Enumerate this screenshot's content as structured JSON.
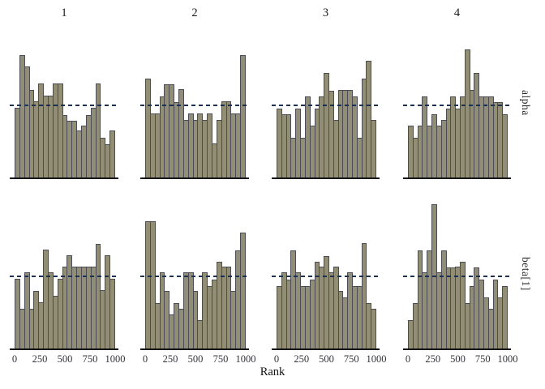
{
  "figure": {
    "col_titles": [
      "1",
      "2",
      "3",
      "4"
    ],
    "row_labels": [
      "alpha",
      "beta[1]"
    ],
    "xlabel": "Rank",
    "x_tick_labels": [
      "0",
      "250",
      "500",
      "750",
      "1000"
    ],
    "colors": {
      "background": "#ffffff",
      "bar_fill": "#928e76",
      "bar_border": "#4c4c56",
      "reference_line": "#1c3152",
      "axis_line": "#141414",
      "title_text": "#1a1a1a",
      "tick_text": "#33333d"
    }
  },
  "chart_data": {
    "type": "bar",
    "subtype": "faceted rank histograms (MCMC chain rank plot), 2 rows x 4 columns",
    "facet_grid": {
      "rows": [
        "alpha",
        "beta[1]"
      ],
      "cols": [
        "1",
        "2",
        "3",
        "4"
      ]
    },
    "title": "",
    "xlabel": "Rank",
    "ylabel": "",
    "x_range": [
      0,
      1000
    ],
    "x_ticks": [
      0,
      250,
      500,
      750,
      1000
    ],
    "bins_per_panel": 21,
    "grid": "off",
    "reference_line": "horizontal dashed navy line in every panel marking the expected uniform bin height (1.0 on the relative scale below)",
    "y_unit": "bar height relative to the dashed uniform-expectation line (line = 1.0)",
    "facets": [
      {
        "row": "alpha",
        "col": "1",
        "heights": [
          0.97,
          1.69,
          1.53,
          1.21,
          1.05,
          1.3,
          1.13,
          1.13,
          1.3,
          1.3,
          0.87,
          0.79,
          0.79,
          0.65,
          0.72,
          0.87,
          0.97,
          1.3,
          0.56,
          0.47,
          0.65
        ]
      },
      {
        "row": "alpha",
        "col": "2",
        "heights": [
          1.37,
          0.89,
          0.89,
          1.12,
          1.29,
          1.29,
          1.04,
          1.22,
          0.8,
          0.89,
          0.8,
          0.89,
          0.8,
          0.89,
          0.48,
          0.8,
          1.05,
          1.05,
          0.89,
          0.89,
          1.69
        ]
      },
      {
        "row": "alpha",
        "col": "3",
        "heights": [
          0.96,
          0.88,
          0.88,
          0.56,
          0.96,
          0.56,
          1.12,
          0.72,
          0.96,
          1.12,
          1.44,
          1.2,
          0.8,
          1.21,
          1.21,
          1.21,
          1.12,
          0.56,
          1.37,
          1.61,
          0.8
        ]
      },
      {
        "row": "alpha",
        "col": "4",
        "heights": [
          0.72,
          0.56,
          0.72,
          1.12,
          0.72,
          0.88,
          0.72,
          0.8,
          0.96,
          1.12,
          0.96,
          1.12,
          1.77,
          1.21,
          1.44,
          1.12,
          1.12,
          1.12,
          1.04,
          1.04,
          0.88
        ]
      },
      {
        "row": "beta[1]",
        "col": "1",
        "heights": [
          0.97,
          0.56,
          1.06,
          0.56,
          0.8,
          0.64,
          1.37,
          1.06,
          0.73,
          0.97,
          1.13,
          1.29,
          1.13,
          1.13,
          1.13,
          1.13,
          1.13,
          1.44,
          0.81,
          1.29,
          0.97
        ]
      },
      {
        "row": "beta[1]",
        "col": "2",
        "heights": [
          1.76,
          1.76,
          0.63,
          1.05,
          0.8,
          0.48,
          0.63,
          0.55,
          1.05,
          1.05,
          0.8,
          0.4,
          1.05,
          0.87,
          0.96,
          1.2,
          1.13,
          1.13,
          0.8,
          1.36,
          1.6
        ]
      },
      {
        "row": "beta[1]",
        "col": "3",
        "heights": [
          0.87,
          1.05,
          0.96,
          1.36,
          1.05,
          0.87,
          0.87,
          0.96,
          1.2,
          1.13,
          1.28,
          1.05,
          1.13,
          0.8,
          0.71,
          1.05,
          0.87,
          0.87,
          1.45,
          0.63,
          0.55
        ]
      },
      {
        "row": "beta[1]",
        "col": "4",
        "heights": [
          0.4,
          0.63,
          1.36,
          1.05,
          1.36,
          1.99,
          1.05,
          1.36,
          1.12,
          1.12,
          1.13,
          1.2,
          0.63,
          0.87,
          1.12,
          0.96,
          0.71,
          0.55,
          0.96,
          0.71,
          0.87
        ]
      }
    ]
  }
}
